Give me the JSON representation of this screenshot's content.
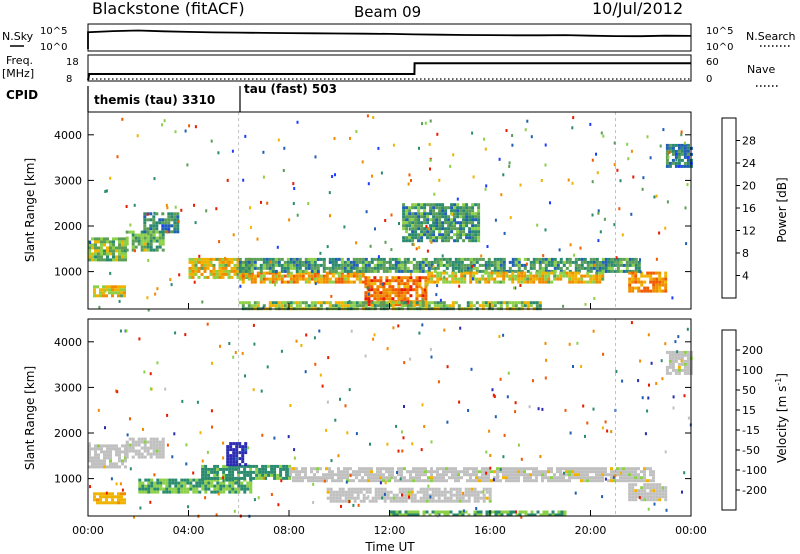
{
  "header": {
    "radar": "Blackstone (fitACF)",
    "beam": "Beam 09",
    "date": "10/Jul/2012"
  },
  "top_panels": {
    "nsky_label": "N.Sky",
    "nsearch_label": "N.Search",
    "freq_label": "Freq.",
    "freq_unit": "[MHz]",
    "nave_label": "Nave",
    "cpid_label": "CPID",
    "count_ticks": [
      "10^5",
      "10^0"
    ],
    "freq_ticks": [
      "18",
      "8"
    ],
    "nave_ticks": [
      "60",
      "0"
    ],
    "cpid_segments": [
      {
        "label": "themis (tau) 3310",
        "start_hour": 0
      },
      {
        "label": "tau (fast) 503",
        "start_hour": 6
      }
    ]
  },
  "colors": {
    "scale": [
      "#1e3cff",
      "#1f5fb4",
      "#2a8a6e",
      "#5a9e58",
      "#8cd048",
      "#f0b400",
      "#f08c00",
      "#f05a00",
      "#e81a00"
    ],
    "velocity_scale": [
      "#2a2ab4",
      "#1f5fb4",
      "#2a8a6e",
      "#8cd048",
      "#c0c0c0",
      "#f0b400",
      "#f08c00",
      "#f05a00",
      "#e81a00"
    ]
  },
  "chart_data": [
    {
      "type": "line",
      "title": "N.Sky / N.Search",
      "ylabel": "N.Sky",
      "y2label": "N.Search",
      "x": [
        0,
        1,
        2,
        3,
        4,
        5,
        6,
        7,
        8,
        9,
        10,
        11,
        12,
        13,
        14,
        15,
        16,
        17,
        18,
        19,
        20,
        21,
        22,
        23,
        24
      ],
      "series": [
        {
          "name": "N.Sky",
          "values": [
            10000,
            18000,
            25000,
            16000,
            12000,
            9000,
            8000,
            7000,
            6000,
            5500,
            5000,
            4500,
            4000,
            3000,
            2500,
            2200,
            2000,
            1800,
            1800,
            2000,
            1500,
            1200,
            1100,
            1500,
            1300
          ]
        }
      ],
      "ylim": [
        1,
        100000
      ],
      "yscale": "log"
    },
    {
      "type": "line",
      "title": "Freq / Nave",
      "ylabel": "Freq. [MHz]",
      "y2label": "Nave",
      "x": [
        0,
        0.05,
        6,
        12.99,
        13,
        24
      ],
      "series": [
        {
          "name": "Freq.",
          "values": [
            8,
            10.5,
            10.5,
            10.5,
            15,
            15
          ]
        },
        {
          "name": "Nave",
          "values": [
            0,
            0,
            0,
            0,
            0,
            0
          ]
        }
      ],
      "ylim": [
        8,
        18
      ],
      "y2lim": [
        0,
        60
      ]
    },
    {
      "type": "heatmap",
      "title": "Power [dB]",
      "xlabel": "",
      "ylabel": "Slant Range [km]",
      "colorbar_label": "Power [dB]",
      "colorbar_ticks": [
        "28",
        "24",
        "20",
        "16",
        "12",
        "8",
        "4"
      ],
      "colorbar_range": [
        0,
        30
      ],
      "yticks": [
        "4000",
        "3000",
        "2000",
        "1000"
      ],
      "ylim": [
        180,
        4500
      ],
      "xlim": [
        0,
        24
      ],
      "regions": [
        {
          "h0": 0.0,
          "h1": 1.5,
          "r0": 1250,
          "r1": 1750,
          "value": 14
        },
        {
          "h0": 1.5,
          "h1": 3.0,
          "r0": 1500,
          "r1": 1900,
          "value": 12
        },
        {
          "h0": 2.2,
          "h1": 3.6,
          "r0": 1900,
          "r1": 2300,
          "value": 8
        },
        {
          "h0": 0.2,
          "h1": 1.5,
          "r0": 500,
          "r1": 700,
          "value": 18
        },
        {
          "h0": 4.0,
          "h1": 6.5,
          "r0": 900,
          "r1": 1300,
          "value": 18
        },
        {
          "h0": 6.0,
          "h1": 11.0,
          "r0": 750,
          "r1": 1000,
          "value": 20
        },
        {
          "h0": 6.0,
          "h1": 22.0,
          "r0": 1000,
          "r1": 1300,
          "value": 10
        },
        {
          "h0": 11.0,
          "h1": 13.5,
          "r0": 250,
          "r1": 900,
          "value": 24
        },
        {
          "h0": 13.5,
          "h1": 20.5,
          "r0": 750,
          "r1": 1000,
          "value": 18
        },
        {
          "h0": 21.5,
          "h1": 23.0,
          "r0": 550,
          "r1": 1000,
          "value": 22
        },
        {
          "h0": 12.5,
          "h1": 15.5,
          "r0": 1700,
          "r1": 2500,
          "value": 10
        },
        {
          "h0": 23.0,
          "h1": 24.0,
          "r0": 3300,
          "r1": 3800,
          "value": 8
        },
        {
          "h0": 6.0,
          "h1": 18.0,
          "r0": 200,
          "r1": 350,
          "value": 14
        }
      ]
    },
    {
      "type": "heatmap",
      "title": "Velocity [m s-1]",
      "xlabel": "Time UT",
      "ylabel": "Slant Range [km]",
      "colorbar_label": "Velocity [m s",
      "colorbar_label_superscript": "-1",
      "colorbar_label_close": "]",
      "colorbar_ticks": [
        "200",
        "100",
        "50",
        "15",
        "-15",
        "-50",
        "-100",
        "-200"
      ],
      "colorbar_range": [
        -250,
        250
      ],
      "yticks": [
        "4000",
        "3000",
        "2000",
        "1000"
      ],
      "ylim": [
        180,
        4500
      ],
      "xlim": [
        0,
        24
      ],
      "xticks": [
        "00:00",
        "04:00",
        "08:00",
        "12:00",
        "16:00",
        "20:00",
        "00:00"
      ],
      "regions": [
        {
          "h0": 0.0,
          "h1": 1.5,
          "r0": 1250,
          "r1": 1750,
          "value": 0
        },
        {
          "h0": 1.5,
          "h1": 3.0,
          "r0": 1500,
          "r1": 1900,
          "value": 0
        },
        {
          "h0": 0.2,
          "h1": 1.5,
          "r0": 500,
          "r1": 700,
          "value": 60
        },
        {
          "h0": 2.0,
          "h1": 6.5,
          "r0": 700,
          "r1": 1000,
          "value": -80
        },
        {
          "h0": 4.5,
          "h1": 8.0,
          "r0": 1000,
          "r1": 1300,
          "value": -100
        },
        {
          "h0": 5.5,
          "h1": 6.3,
          "r0": 1300,
          "r1": 1800,
          "value": -220
        },
        {
          "h0": 8.0,
          "h1": 22.5,
          "r0": 950,
          "r1": 1250,
          "value": 0
        },
        {
          "h0": 9.5,
          "h1": 16.0,
          "r0": 500,
          "r1": 800,
          "value": 0
        },
        {
          "h0": 12.0,
          "h1": 19.0,
          "r0": 200,
          "r1": 300,
          "value": -80
        },
        {
          "h0": 21.5,
          "h1": 23.0,
          "r0": 550,
          "r1": 900,
          "value": 0
        },
        {
          "h0": 23.0,
          "h1": 24.0,
          "r0": 3300,
          "r1": 3800,
          "value": 0
        }
      ]
    }
  ]
}
